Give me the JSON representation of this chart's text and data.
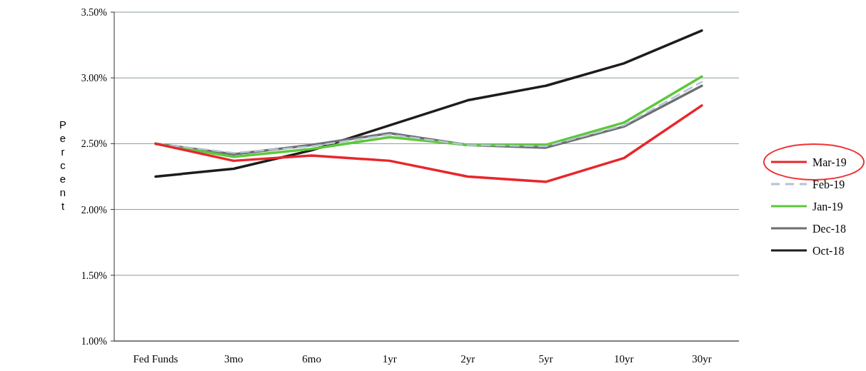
{
  "chart_data": {
    "type": "line",
    "ylabel": "Percent",
    "categories": [
      "Fed Funds",
      "3mo",
      "6mo",
      "1yr",
      "2yr",
      "5yr",
      "10yr",
      "30yr"
    ],
    "series": [
      {
        "name": "Mar-19",
        "color": "#e8262b",
        "values": [
          2.5,
          2.37,
          2.41,
          2.37,
          2.25,
          2.21,
          2.39,
          2.79
        ]
      },
      {
        "name": "Feb-19",
        "color": "#b4c4d4",
        "line_style": "dashed",
        "values": [
          2.5,
          2.43,
          2.48,
          2.57,
          2.49,
          2.48,
          2.64,
          2.97
        ]
      },
      {
        "name": "Jan-19",
        "color": "#5cc83a",
        "values": [
          2.5,
          2.4,
          2.46,
          2.55,
          2.49,
          2.49,
          2.66,
          3.01
        ]
      },
      {
        "name": "Dec-18",
        "color": "#6e6e72",
        "values": [
          2.5,
          2.42,
          2.49,
          2.58,
          2.49,
          2.47,
          2.63,
          2.94
        ]
      },
      {
        "name": "Oct-18",
        "color": "#1c1c1c",
        "values": [
          2.25,
          2.31,
          2.45,
          2.64,
          2.83,
          2.94,
          3.11,
          3.36
        ]
      }
    ],
    "ylim": [
      1.0,
      3.5
    ],
    "yticks": [
      {
        "value": 1.0,
        "label": "1.00%"
      },
      {
        "value": 1.5,
        "label": "1.50%"
      },
      {
        "value": 2.0,
        "label": "2.00%"
      },
      {
        "value": 2.5,
        "label": "2.50%"
      },
      {
        "value": 3.0,
        "label": "3.00%"
      },
      {
        "value": 3.5,
        "label": "3.50%"
      }
    ],
    "grid": "y",
    "legend": "right",
    "marker": "none",
    "line_style": "solid"
  }
}
